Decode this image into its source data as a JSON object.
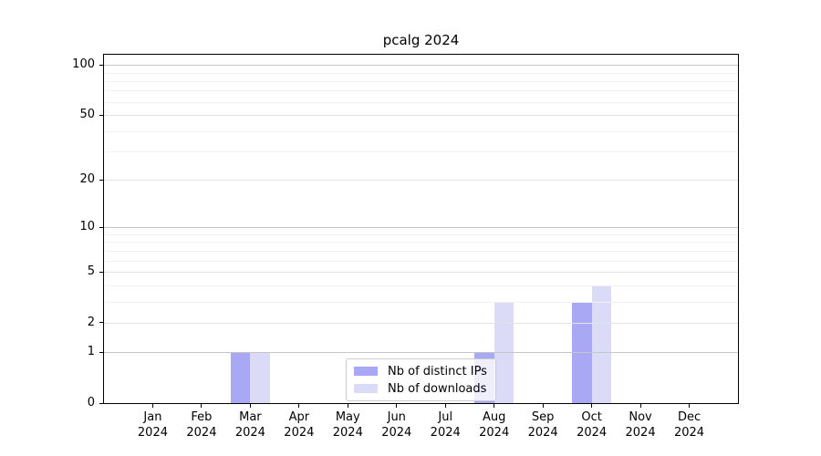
{
  "title": "pcalg 2024",
  "chart_data": {
    "type": "bar",
    "title": "pcalg 2024",
    "categories": [
      "Jan 2024",
      "Feb 2024",
      "Mar 2024",
      "Apr 2024",
      "May 2024",
      "Jun 2024",
      "Jul 2024",
      "Aug 2024",
      "Sep 2024",
      "Oct 2024",
      "Nov 2024",
      "Dec 2024"
    ],
    "series": [
      {
        "name": "Nb of distinct IPs",
        "color": "#a8a8f5",
        "values": [
          0,
          0,
          1,
          0,
          0,
          0,
          0,
          1,
          0,
          3,
          0,
          0
        ]
      },
      {
        "name": "Nb of downloads",
        "color": "#dbdbf8",
        "values": [
          0,
          0,
          1,
          0,
          0,
          0,
          0,
          3,
          0,
          4,
          0,
          0
        ]
      }
    ],
    "yscale": "log1p",
    "ylim": [
      0,
      115
    ],
    "yticks": [
      0,
      1,
      2,
      5,
      10,
      20,
      50,
      100
    ],
    "yticks_minor": [
      3,
      4,
      6,
      7,
      8,
      9,
      30,
      40,
      60,
      70,
      80,
      90
    ],
    "grid_decades": [
      1,
      10,
      100
    ],
    "grid": true,
    "legend_position": "lower center"
  },
  "colors": {
    "axis": "#000000",
    "grid_decade": "#c6c6c6",
    "grid_major": "#e3e3e3",
    "grid_minor": "#f2f2f2",
    "background": "#ffffff",
    "legend_border": "#cccccc"
  }
}
